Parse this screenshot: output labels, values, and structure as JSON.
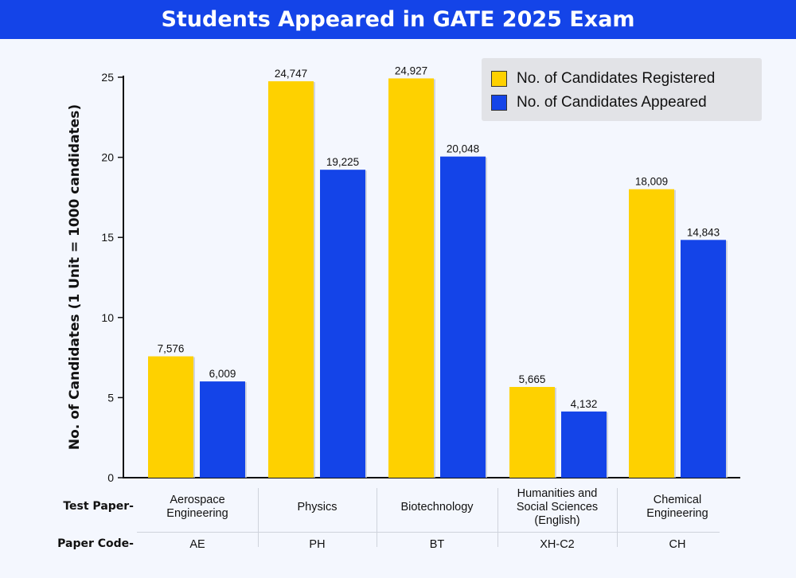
{
  "title": "Students Appeared in GATE 2025 Exam",
  "colors": {
    "title_bg": "#1444e8",
    "registered": "#fed100",
    "appeared": "#1444e8"
  },
  "legend": {
    "registered": "No. of Candidates Registered",
    "appeared": "No. of Candidates Appeared"
  },
  "table": {
    "row1_label": "Test Paper-",
    "row2_label": "Paper Code-",
    "papers": [
      {
        "name": "Aerospace\nEngineering",
        "code": "AE"
      },
      {
        "name": "Physics",
        "code": "PH"
      },
      {
        "name": "Biotechnology",
        "code": "BT"
      },
      {
        "name": "Humanities and\nSocial Sciences\n(English)",
        "code": "XH-C2"
      },
      {
        "name": "Chemical\nEngineering",
        "code": "CH"
      }
    ]
  },
  "chart_data": {
    "type": "bar",
    "categories": [
      "AE",
      "PH",
      "BT",
      "XH-C2",
      "CH"
    ],
    "ylabel": "No. of Candidates  (1 Unit = 1000 candidates)",
    "ylim": [
      0,
      25
    ],
    "yticks": [
      0,
      5,
      10,
      15,
      20,
      25
    ],
    "legend_position": "top-right",
    "grid": false,
    "series": [
      {
        "name": "No. of Candidates Registered",
        "values": [
          7.576,
          24.747,
          24.927,
          5.665,
          18.009
        ],
        "labels": [
          "7,576",
          "24,747",
          "24,927",
          "5,665",
          "18,009"
        ]
      },
      {
        "name": "No. of Candidates Appeared",
        "values": [
          6.009,
          19.225,
          20.048,
          4.132,
          14.843
        ],
        "labels": [
          "6,009",
          "19,225",
          "20,048",
          "4,132",
          "14,843"
        ]
      }
    ]
  }
}
